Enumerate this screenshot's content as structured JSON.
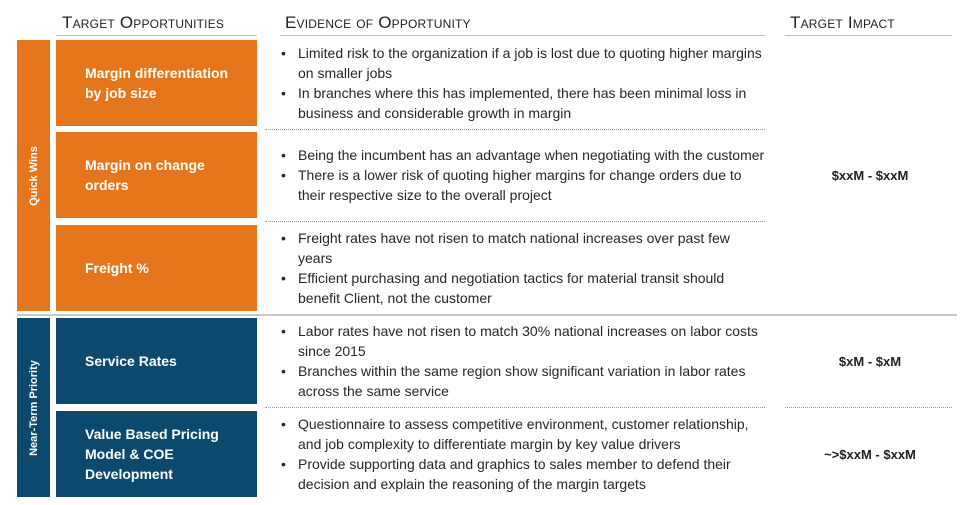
{
  "headers": {
    "target_opportunities": "Target Opportunities",
    "evidence": "Evidence of Opportunity",
    "impact": "Target Impact"
  },
  "groups": [
    {
      "label": "Quick Wins",
      "color": "#e5761c"
    },
    {
      "label": "Near-Term Priority",
      "color": "#0b4a6e"
    }
  ],
  "rows": [
    {
      "opportunity": "Margin differentiation by job size",
      "evidence": [
        "Limited risk to the organization if a job is lost due to quoting higher margins on smaller jobs",
        "In branches where this has implemented, there has been minimal loss in business and considerable growth in margin"
      ]
    },
    {
      "opportunity": "Margin on change orders",
      "evidence": [
        "Being the incumbent has an advantage when negotiating with the customer",
        "There is a lower risk of quoting higher margins for change orders due to their respective size to the overall project"
      ]
    },
    {
      "opportunity": "Freight %",
      "evidence": [
        "Freight rates have not risen to match national increases over past few years",
        "Efficient purchasing and negotiation tactics for material transit should benefit Client, not the customer"
      ]
    },
    {
      "opportunity": "Service Rates",
      "evidence": [
        "Labor rates have not risen to match 30% national increases on labor costs since 2015",
        "Branches within the same region show significant variation in labor rates across the same service"
      ]
    },
    {
      "opportunity": "Value Based Pricing Model & COE Development",
      "evidence": [
        "Questionnaire to assess competitive environment, customer relationship, and job complexity to differentiate margin by key value drivers",
        "Provide supporting data and graphics to sales member to defend their decision and explain the reasoning of the margin targets"
      ]
    }
  ],
  "impacts": [
    "$xxM - $xxM",
    "$xM - $xM",
    "~>$xxM - $xxM"
  ]
}
